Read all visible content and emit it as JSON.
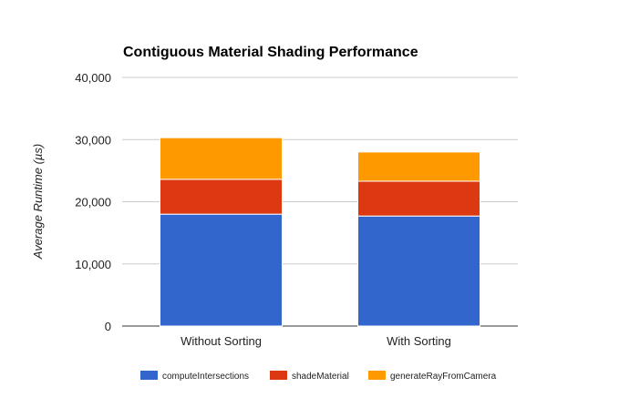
{
  "chart_data": {
    "type": "bar",
    "stacked": true,
    "title": "Contiguous Material Shading Performance",
    "xlabel": "",
    "ylabel": "Average Runtime (µs)",
    "ylim": [
      0,
      40000
    ],
    "yticks": [
      0,
      10000,
      20000,
      30000,
      40000
    ],
    "ytick_labels": [
      "0",
      "10,000",
      "20,000",
      "30,000",
      "40,000"
    ],
    "grid": true,
    "legend_position": "bottom",
    "categories": [
      "Without Sorting",
      "With Sorting"
    ],
    "series": [
      {
        "name": "computeIntersections",
        "color": "#3366cc",
        "values": [
          18000,
          17700
        ]
      },
      {
        "name": "shadeMaterial",
        "color": "#dc3912",
        "values": [
          5600,
          5600
        ]
      },
      {
        "name": "generateRayFromCamera",
        "color": "#ff9900",
        "values": [
          6700,
          4700
        ]
      }
    ]
  }
}
